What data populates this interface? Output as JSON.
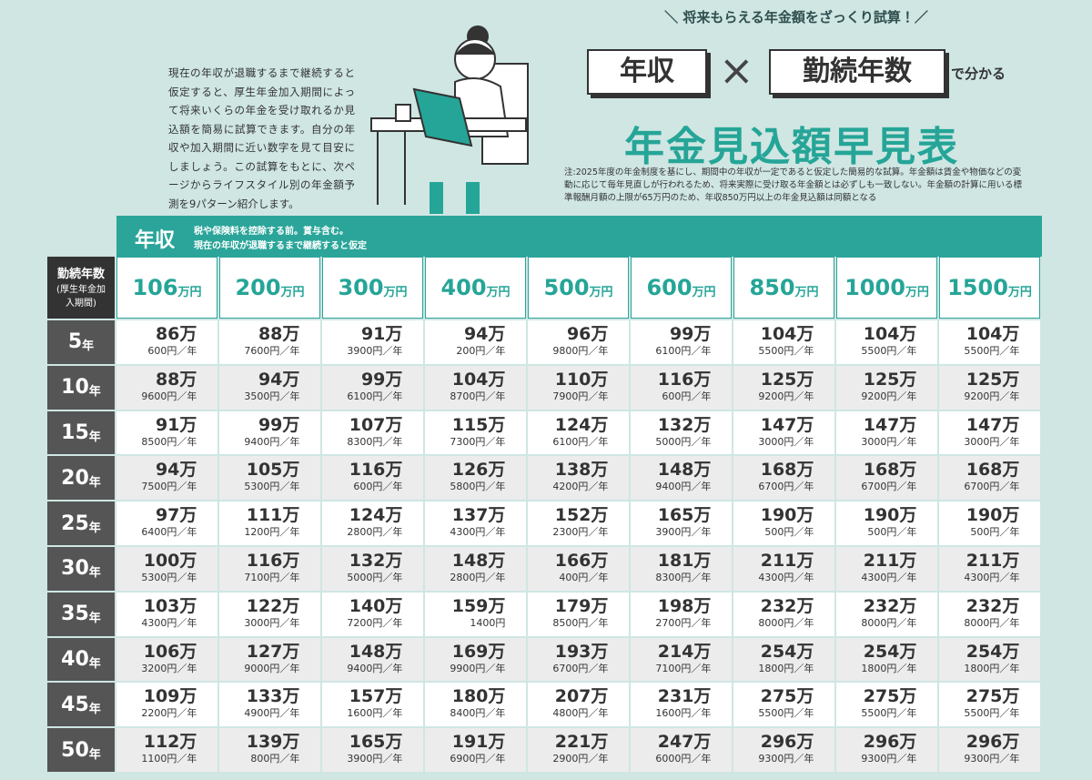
{
  "header": {
    "slogan": "＼ 将来もらえる年金額をざっくり試算！／",
    "key1": "年収",
    "cross": "×",
    "key2": "勤続年数",
    "suffix": "で分かる",
    "title": "年金見込額早見表",
    "note": "注:2025年度の年金制度を基にし、期間中の年収が一定であると仮定した簡易的な試算。年金額は賃金や物価などの変動に応じて毎年見直しが行われるため、将来実際に受け取る年金額とは必ずしも一致しない。年金額の計算に用いる標準報酬月額の上限が65万円のため、年収850万円以上の年金見込額は同額となる"
  },
  "intro": "現在の年収が退職するまで継続すると仮定すると、厚生年金加入期間によって将来いくらの年金を受け取れるか見込額を簡易に試算できます。自分の年収や加入期間に近い数字を見て目安にしましょう。この試算をもとに、次ページからライフスタイル別の年金額予測を9パターン紹介します。",
  "table": {
    "income_label": "年収",
    "income_note1": "税や保険料を控除する前。賞与含む。",
    "income_note2": "現在の年収が退職するまで継続すると仮定",
    "row_label": "勤続年数",
    "row_label_note": "(厚生年金加入期間)",
    "columns": [
      "106",
      "200",
      "300",
      "400",
      "500",
      "600",
      "850",
      "1000",
      "1500"
    ],
    "column_unit": "万円",
    "rows": [
      "5",
      "10",
      "15",
      "20",
      "25",
      "30",
      "35",
      "40",
      "45",
      "50"
    ],
    "row_unit": "年",
    "cells": [
      [
        [
          "86万",
          "600円／年"
        ],
        [
          "88万",
          "7600円／年"
        ],
        [
          "91万",
          "3900円／年"
        ],
        [
          "94万",
          "200円／年"
        ],
        [
          "96万",
          "9800円／年"
        ],
        [
          "99万",
          "6100円／年"
        ],
        [
          "104万",
          "5500円／年"
        ],
        [
          "104万",
          "5500円／年"
        ],
        [
          "104万",
          "5500円／年"
        ]
      ],
      [
        [
          "88万",
          "9600円／年"
        ],
        [
          "94万",
          "3500円／年"
        ],
        [
          "99万",
          "6100円／年"
        ],
        [
          "104万",
          "8700円／年"
        ],
        [
          "110万",
          "7900円／年"
        ],
        [
          "116万",
          "600円／年"
        ],
        [
          "125万",
          "9200円／年"
        ],
        [
          "125万",
          "9200円／年"
        ],
        [
          "125万",
          "9200円／年"
        ]
      ],
      [
        [
          "91万",
          "8500円／年"
        ],
        [
          "99万",
          "9400円／年"
        ],
        [
          "107万",
          "8300円／年"
        ],
        [
          "115万",
          "7300円／年"
        ],
        [
          "124万",
          "6100円／年"
        ],
        [
          "132万",
          "5000円／年"
        ],
        [
          "147万",
          "3000円／年"
        ],
        [
          "147万",
          "3000円／年"
        ],
        [
          "147万",
          "3000円／年"
        ]
      ],
      [
        [
          "94万",
          "7500円／年"
        ],
        [
          "105万",
          "5300円／年"
        ],
        [
          "116万",
          "600円／年"
        ],
        [
          "126万",
          "5800円／年"
        ],
        [
          "138万",
          "4200円／年"
        ],
        [
          "148万",
          "9400円／年"
        ],
        [
          "168万",
          "6700円／年"
        ],
        [
          "168万",
          "6700円／年"
        ],
        [
          "168万",
          "6700円／年"
        ]
      ],
      [
        [
          "97万",
          "6400円／年"
        ],
        [
          "111万",
          "1200円／年"
        ],
        [
          "124万",
          "2800円／年"
        ],
        [
          "137万",
          "4300円／年"
        ],
        [
          "152万",
          "2300円／年"
        ],
        [
          "165万",
          "3900円／年"
        ],
        [
          "190万",
          "500円／年"
        ],
        [
          "190万",
          "500円／年"
        ],
        [
          "190万",
          "500円／年"
        ]
      ],
      [
        [
          "100万",
          "5300円／年"
        ],
        [
          "116万",
          "7100円／年"
        ],
        [
          "132万",
          "5000円／年"
        ],
        [
          "148万",
          "2800円／年"
        ],
        [
          "166万",
          "400円／年"
        ],
        [
          "181万",
          "8300円／年"
        ],
        [
          "211万",
          "4300円／年"
        ],
        [
          "211万",
          "4300円／年"
        ],
        [
          "211万",
          "4300円／年"
        ]
      ],
      [
        [
          "103万",
          "4300円／年"
        ],
        [
          "122万",
          "3000円／年"
        ],
        [
          "140万",
          "7200円／年"
        ],
        [
          "159万",
          "1400円"
        ],
        [
          "179万",
          "8500円／年"
        ],
        [
          "198万",
          "2700円／年"
        ],
        [
          "232万",
          "8000円／年"
        ],
        [
          "232万",
          "8000円／年"
        ],
        [
          "232万",
          "8000円／年"
        ]
      ],
      [
        [
          "106万",
          "3200円／年"
        ],
        [
          "127万",
          "9000円／年"
        ],
        [
          "148万",
          "9400円／年"
        ],
        [
          "169万",
          "9900円／年"
        ],
        [
          "193万",
          "6700円／年"
        ],
        [
          "214万",
          "7100円／年"
        ],
        [
          "254万",
          "1800円／年"
        ],
        [
          "254万",
          "1800円／年"
        ],
        [
          "254万",
          "1800円／年"
        ]
      ],
      [
        [
          "109万",
          "2200円／年"
        ],
        [
          "133万",
          "4900円／年"
        ],
        [
          "157万",
          "1600円／年"
        ],
        [
          "180万",
          "8400円／年"
        ],
        [
          "207万",
          "4800円／年"
        ],
        [
          "231万",
          "1600円／年"
        ],
        [
          "275万",
          "5500円／年"
        ],
        [
          "275万",
          "5500円／年"
        ],
        [
          "275万",
          "5500円／年"
        ]
      ],
      [
        [
          "112万",
          "1100円／年"
        ],
        [
          "139万",
          "800円／年"
        ],
        [
          "165万",
          "3900円／年"
        ],
        [
          "191万",
          "6900円／年"
        ],
        [
          "221万",
          "2900円／年"
        ],
        [
          "247万",
          "6000円／年"
        ],
        [
          "296万",
          "9300円／年"
        ],
        [
          "296万",
          "9300円／年"
        ],
        [
          "296万",
          "9300円／年"
        ]
      ]
    ]
  }
}
